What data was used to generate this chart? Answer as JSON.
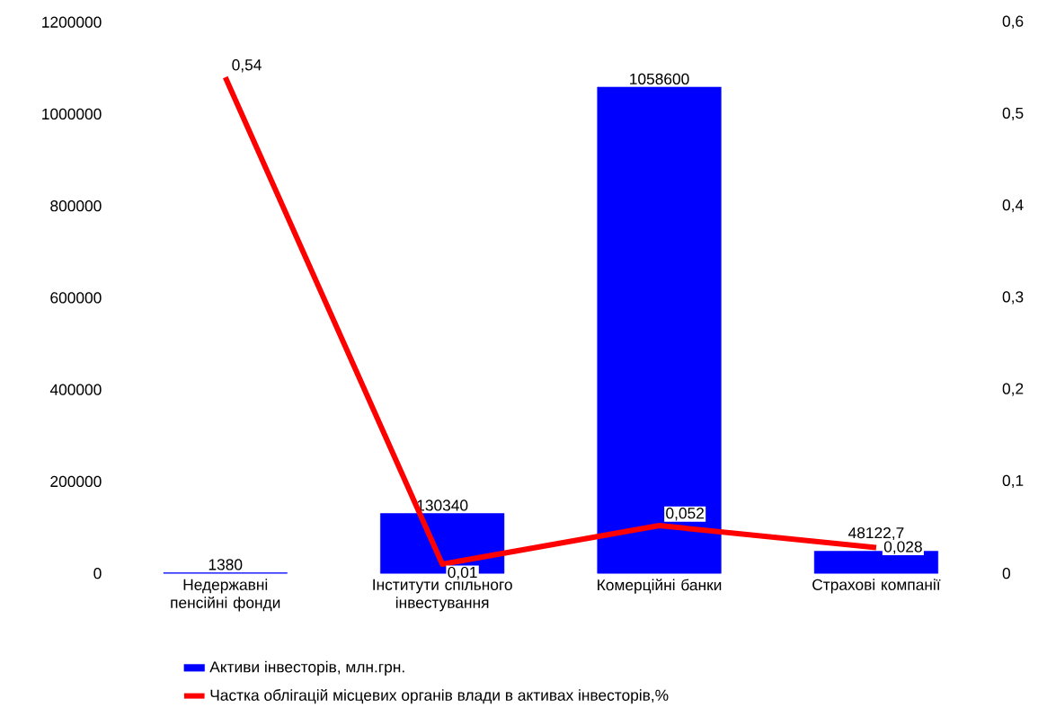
{
  "chart_data": {
    "type": "bar",
    "categories": [
      "Недержавні пенсійні фонди",
      "Інститути спільного інвестування",
      "Комерційні банки",
      "Страхові компанії"
    ],
    "series": [
      {
        "name": "Активи інвесторів, млн.грн.",
        "color": "#0000ff",
        "values": [
          1380,
          130340,
          1058600,
          48122.7
        ],
        "value_labels": [
          "1380",
          "130340",
          "1058600",
          "48122,7"
        ]
      },
      {
        "name": "Частка облігацій місцевих органів влади в активах інвесторів,%",
        "type": "line",
        "axis": "y2",
        "color": "#ff0000",
        "values": [
          0.54,
          0.01,
          0.052,
          0.028
        ],
        "value_labels": [
          "0,54",
          "0,01",
          "0,052",
          "0,028"
        ]
      }
    ],
    "ylim": [
      0,
      1200000
    ],
    "yticks": [
      0,
      200000,
      400000,
      600000,
      800000,
      1000000,
      1200000
    ],
    "y2lim": [
      0,
      0.6
    ],
    "y2ticks": [
      {
        "value": 0,
        "label": "0"
      },
      {
        "value": 0.1,
        "label": "0,1"
      },
      {
        "value": 0.2,
        "label": "0,2"
      },
      {
        "value": 0.3,
        "label": "0,3"
      },
      {
        "value": 0.4,
        "label": "0,4"
      },
      {
        "value": 0.5,
        "label": "0,5"
      },
      {
        "value": 0.6,
        "label": "0,6"
      }
    ],
    "legend": "bottom",
    "marker": "none",
    "line_style": "solid",
    "grid": false
  }
}
